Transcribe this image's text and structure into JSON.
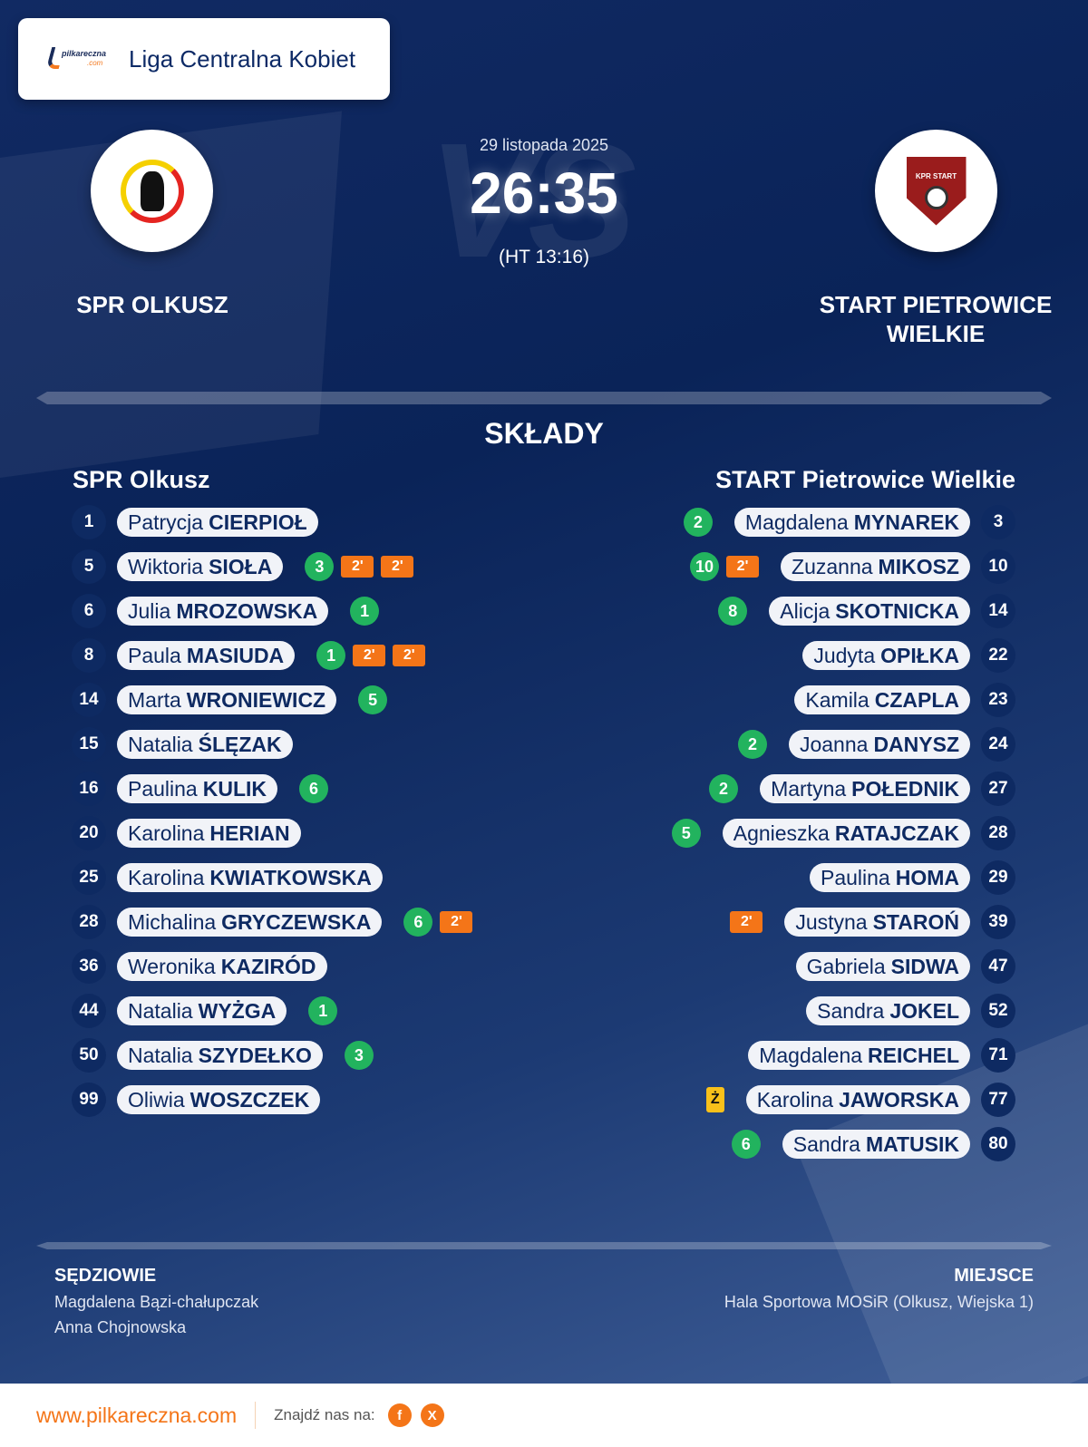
{
  "header": {
    "league": "Liga Centralna Kobiet",
    "logo_text": "pilkareczna",
    "logo_suffix": ".com"
  },
  "match": {
    "date": "29 listopada 2025",
    "score": "26:35",
    "halftime": "(HT 13:16)",
    "vs_watermark": "VS"
  },
  "home": {
    "name_upper": "SPR OLKUSZ",
    "name": "SPR Olkusz",
    "players": [
      {
        "no": "1",
        "first": "Patrycja",
        "last": "CIERPIOŁ",
        "badges": []
      },
      {
        "no": "5",
        "first": "Wiktoria",
        "last": "SIOŁA",
        "badges": [
          {
            "t": "goal",
            "v": "3"
          },
          {
            "t": "susp",
            "v": "2'"
          },
          {
            "t": "susp",
            "v": "2'"
          }
        ]
      },
      {
        "no": "6",
        "first": "Julia",
        "last": "MROZOWSKA",
        "badges": [
          {
            "t": "goal",
            "v": "1"
          }
        ]
      },
      {
        "no": "8",
        "first": "Paula",
        "last": "MASIUDA",
        "badges": [
          {
            "t": "goal",
            "v": "1"
          },
          {
            "t": "susp",
            "v": "2'"
          },
          {
            "t": "susp",
            "v": "2'"
          }
        ]
      },
      {
        "no": "14",
        "first": "Marta",
        "last": "WRONIEWICZ",
        "badges": [
          {
            "t": "goal",
            "v": "5"
          }
        ]
      },
      {
        "no": "15",
        "first": "Natalia",
        "last": "ŚLĘZAK",
        "badges": []
      },
      {
        "no": "16",
        "first": "Paulina",
        "last": "KULIK",
        "badges": [
          {
            "t": "goal",
            "v": "6"
          }
        ]
      },
      {
        "no": "20",
        "first": "Karolina",
        "last": "HERIAN",
        "badges": []
      },
      {
        "no": "25",
        "first": "Karolina",
        "last": "KWIATKOWSKA",
        "badges": []
      },
      {
        "no": "28",
        "first": "Michalina",
        "last": "GRYCZEWSKA",
        "badges": [
          {
            "t": "goal",
            "v": "6"
          },
          {
            "t": "susp",
            "v": "2'"
          }
        ]
      },
      {
        "no": "36",
        "first": "Weronika",
        "last": "KAZIRÓD",
        "badges": []
      },
      {
        "no": "44",
        "first": "Natalia",
        "last": "WYŻGA",
        "badges": [
          {
            "t": "goal",
            "v": "1"
          }
        ]
      },
      {
        "no": "50",
        "first": "Natalia",
        "last": "SZYDEŁKO",
        "badges": [
          {
            "t": "goal",
            "v": "3"
          }
        ]
      },
      {
        "no": "99",
        "first": "Oliwia",
        "last": "WOSZCZEK",
        "badges": []
      }
    ]
  },
  "away": {
    "name_upper": "START PIETROWICE WIELKIE",
    "name": "START Pietrowice Wielkie",
    "crest_text": "KPR START",
    "players": [
      {
        "no": "3",
        "first": "Magdalena",
        "last": "MYNAREK",
        "badges": [
          {
            "t": "goal",
            "v": "2"
          }
        ]
      },
      {
        "no": "10",
        "first": "Zuzanna",
        "last": "MIKOSZ",
        "badges": [
          {
            "t": "goal",
            "v": "10"
          },
          {
            "t": "susp",
            "v": "2'"
          }
        ]
      },
      {
        "no": "14",
        "first": "Alicja",
        "last": "SKOTNICKA",
        "badges": [
          {
            "t": "goal",
            "v": "8"
          }
        ]
      },
      {
        "no": "22",
        "first": "Judyta",
        "last": "OPIŁKA",
        "badges": []
      },
      {
        "no": "23",
        "first": "Kamila",
        "last": "CZAPLA",
        "badges": []
      },
      {
        "no": "24",
        "first": "Joanna",
        "last": "DANYSZ",
        "badges": [
          {
            "t": "goal",
            "v": "2"
          }
        ]
      },
      {
        "no": "27",
        "first": "Martyna",
        "last": "POŁEDNIK",
        "badges": [
          {
            "t": "goal",
            "v": "2"
          }
        ]
      },
      {
        "no": "28",
        "first": "Agnieszka",
        "last": "RATAJCZAK",
        "badges": [
          {
            "t": "goal",
            "v": "5"
          }
        ]
      },
      {
        "no": "29",
        "first": "Paulina",
        "last": "HOMA",
        "badges": []
      },
      {
        "no": "39",
        "first": "Justyna",
        "last": "STAROŃ",
        "badges": [
          {
            "t": "susp",
            "v": "2'"
          }
        ]
      },
      {
        "no": "47",
        "first": "Gabriela",
        "last": "SIDWA",
        "badges": []
      },
      {
        "no": "52",
        "first": "Sandra",
        "last": "JOKEL",
        "badges": []
      },
      {
        "no": "71",
        "first": "Magdalena",
        "last": "REICHEL",
        "badges": []
      },
      {
        "no": "77",
        "first": "Karolina",
        "last": "JAWORSKA",
        "badges": [
          {
            "t": "yellow",
            "v": "Ż"
          }
        ]
      },
      {
        "no": "80",
        "first": "Sandra",
        "last": "MATUSIK",
        "badges": [
          {
            "t": "goal",
            "v": "6"
          }
        ]
      }
    ]
  },
  "section_title": "SKŁADY",
  "referees": {
    "title": "SĘDZIOWIE",
    "names": [
      "Magdalena Bązi-chałupczak",
      "Anna Chojnowska"
    ]
  },
  "venue": {
    "title": "MIEJSCE",
    "text": "Hala Sportowa MOSiR (Olkusz, Wiejska 1)"
  },
  "footer": {
    "site": "www.pilkareczna.com",
    "find_us": "Znajdź nas na:",
    "social": [
      {
        "icon": "facebook-icon",
        "label": "f"
      },
      {
        "icon": "x-icon",
        "label": "X"
      }
    ]
  },
  "colors": {
    "goal": "#22b35e",
    "suspension": "#f47518",
    "yellow_card": "#f9c11a",
    "navy": "#0e2a62",
    "accent": "#f47518"
  }
}
